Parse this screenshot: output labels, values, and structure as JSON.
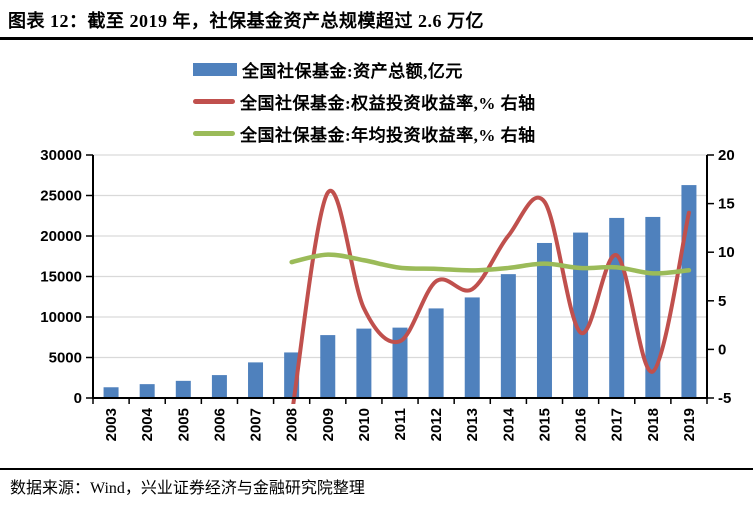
{
  "header": {
    "title": "图表 12：截至 2019 年，社保基金资产总规模超过 2.6 万亿"
  },
  "footer": {
    "source_label": "数据来源：Wind，兴业证券经济与金融研究院整理"
  },
  "colors": {
    "bar_blue": "#4F81BD",
    "line_red": "#C0504D",
    "line_green": "#9BBB59",
    "gridline": "#D9D9D9",
    "axis": "#000000",
    "text": "#000000",
    "background": "#FFFFFF"
  },
  "chart_data": {
    "type": "bar",
    "subtype": "bar+line combo, lines smoothed, dual y-axis",
    "categories": [
      "2003",
      "2004",
      "2005",
      "2006",
      "2007",
      "2008",
      "2009",
      "2010",
      "2011",
      "2012",
      "2013",
      "2014",
      "2015",
      "2016",
      "2017",
      "2018",
      "2019"
    ],
    "series": [
      {
        "name": "全国社保基金:资产总额,亿元",
        "type": "bar",
        "axis": "left",
        "color": "#4F81BD",
        "values": [
          1325,
          1711,
          2118,
          2828,
          4397,
          5624,
          7766,
          8567,
          8688,
          11060,
          12416,
          15290,
          19139,
          20423,
          22231,
          22353,
          26285
        ]
      },
      {
        "name": "全国社保基金:权益投资收益率,% 右轴",
        "type": "line",
        "axis": "right",
        "color": "#C0504D",
        "values": [
          null,
          null,
          null,
          null,
          null,
          -6.79,
          16.12,
          4.23,
          0.84,
          7.01,
          6.2,
          11.69,
          15.19,
          1.73,
          9.68,
          -2.28,
          14.06
        ]
      },
      {
        "name": "全国社保基金:年均投资收益率,% 右轴",
        "type": "line",
        "axis": "right",
        "color": "#9BBB59",
        "values": [
          null,
          null,
          null,
          null,
          null,
          8.98,
          9.75,
          9.17,
          8.4,
          8.29,
          8.13,
          8.38,
          8.82,
          8.37,
          8.44,
          7.82,
          8.14
        ]
      }
    ],
    "left_axis": {
      "min": 0,
      "max": 30000,
      "step": 5000,
      "tick_labels": [
        "0",
        "5000",
        "10000",
        "15000",
        "20000",
        "25000",
        "30000"
      ]
    },
    "right_axis": {
      "min": -5,
      "max": 20,
      "step": 5,
      "tick_labels": [
        "-5",
        "0",
        "5",
        "10",
        "15",
        "20"
      ]
    },
    "grid": "horizontal gridlines on",
    "legend_position": "top",
    "x_tick_label_rotation": -90
  }
}
